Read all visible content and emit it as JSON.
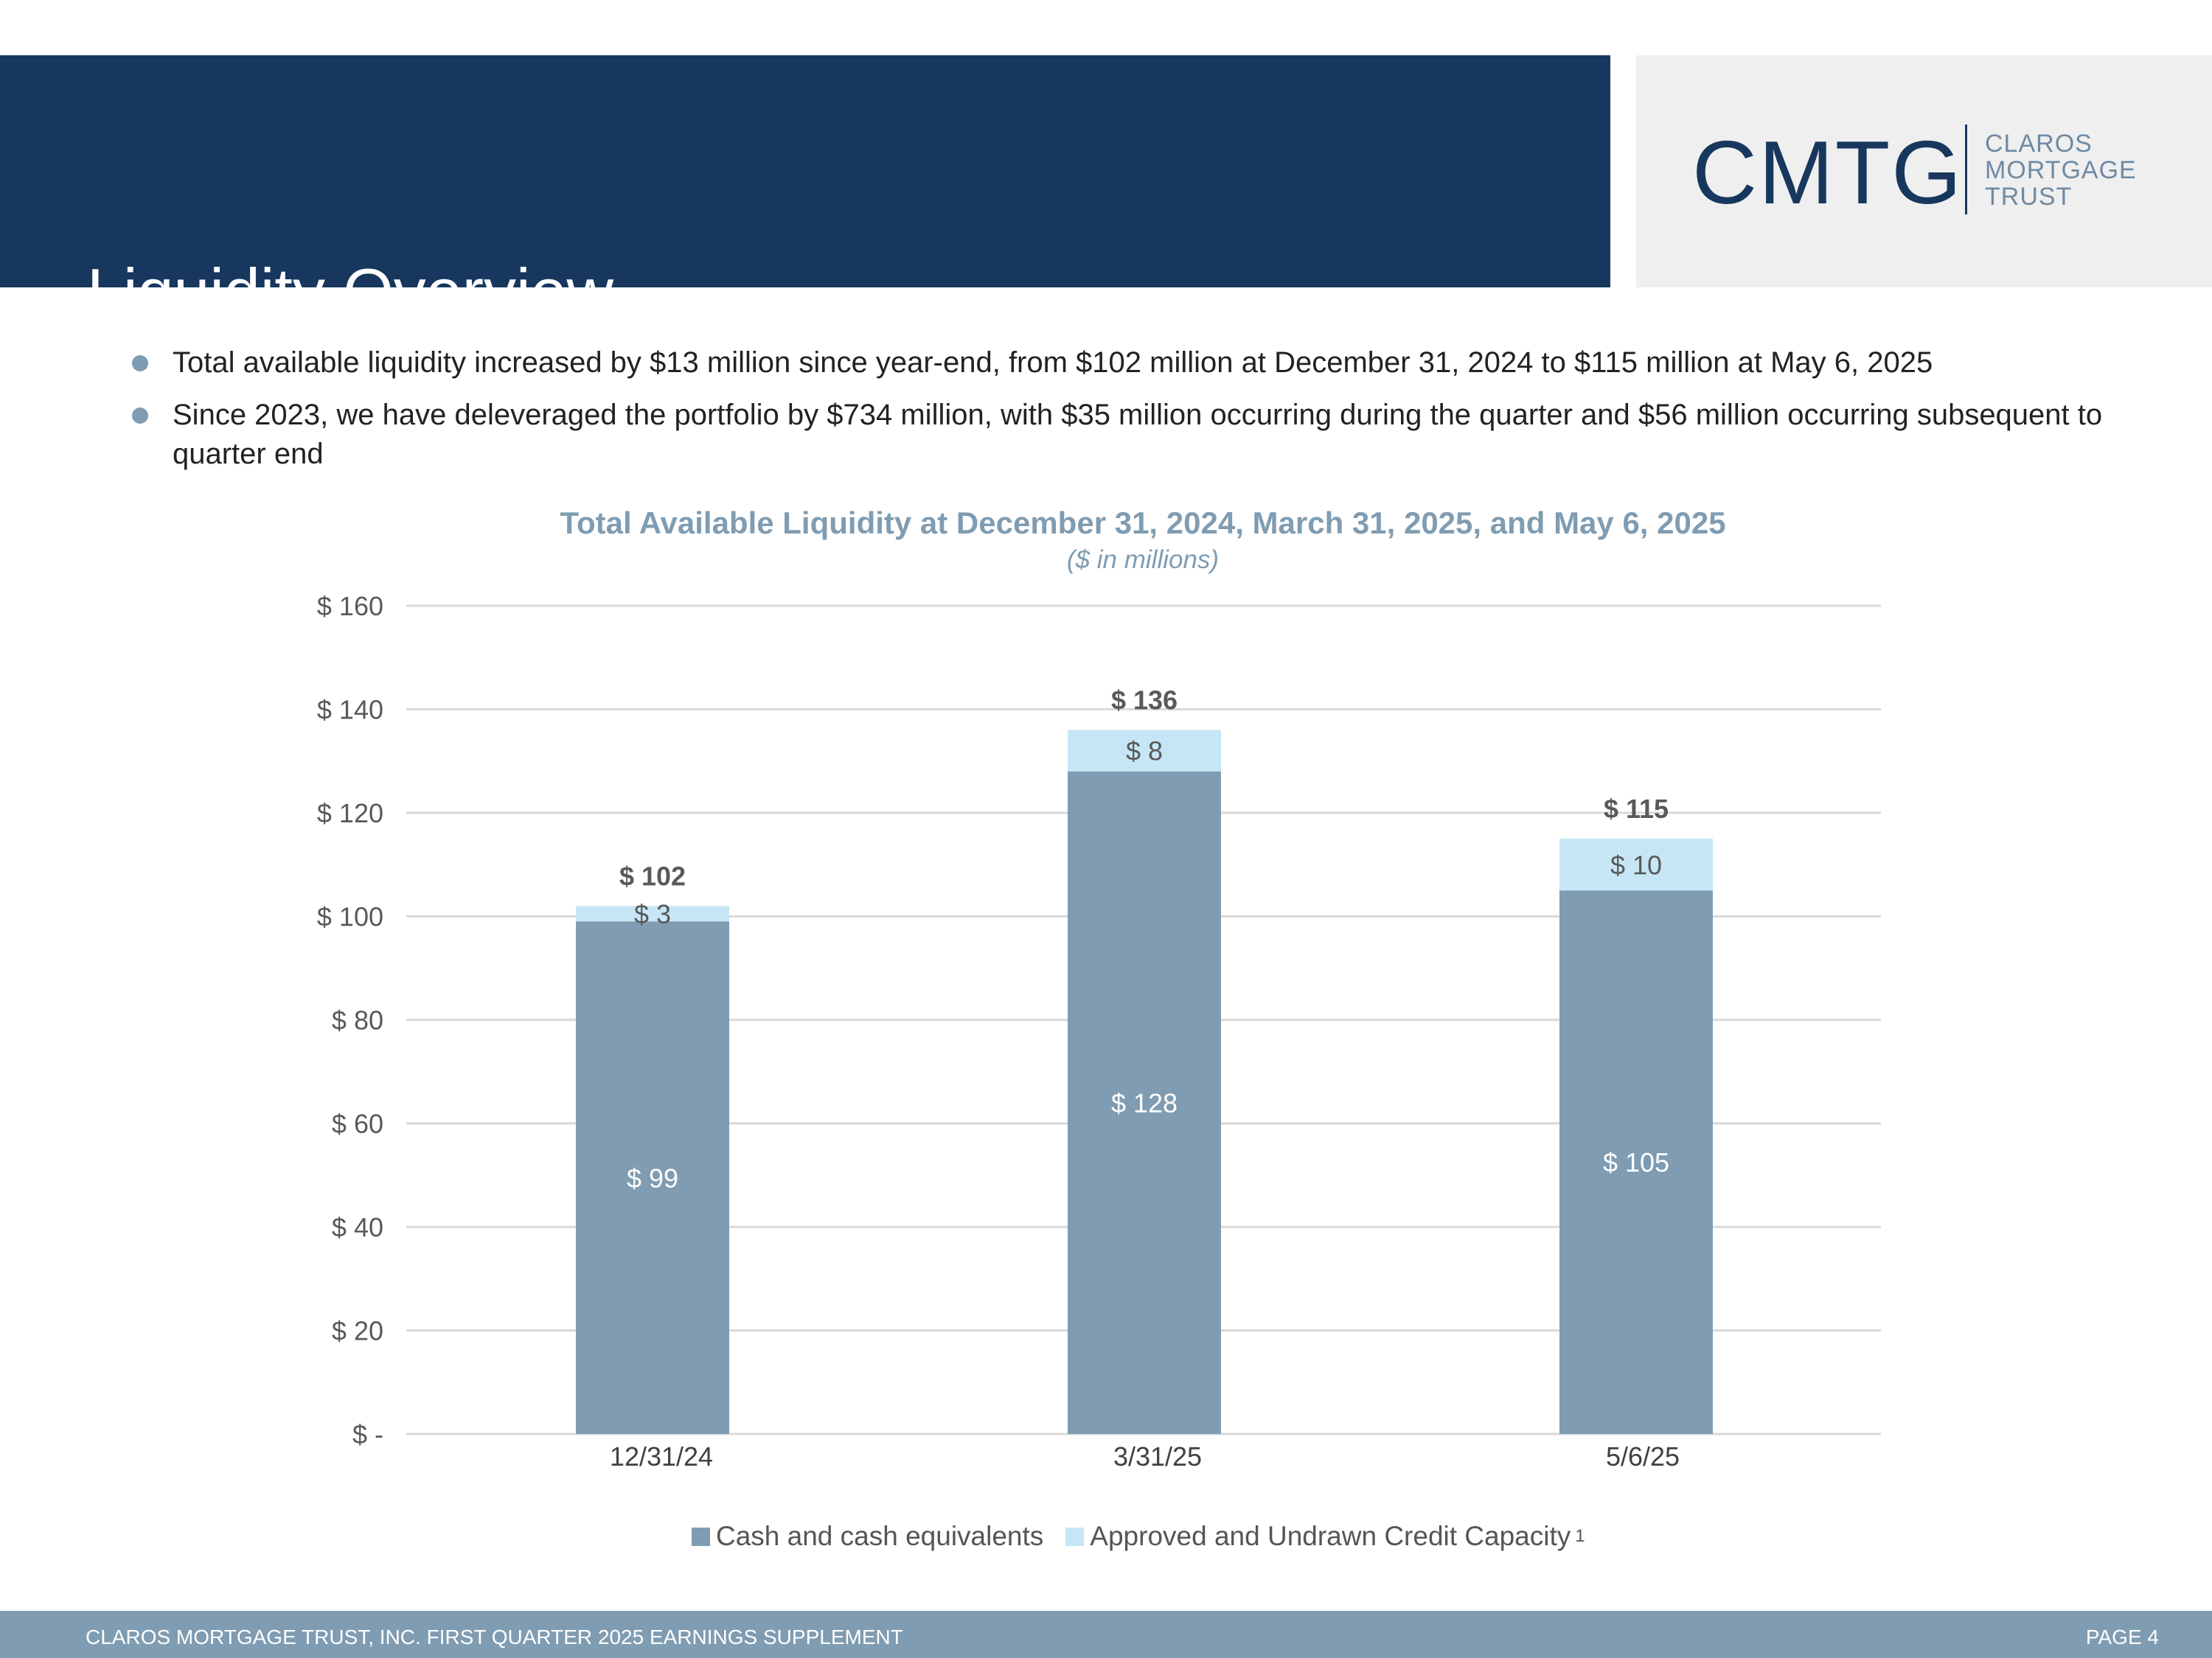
{
  "slide": {
    "title": "Liquidity Overview",
    "header_color": "#17375e"
  },
  "logo": {
    "mark": "CMTG",
    "words": [
      "CLAROS",
      "MORTGAGE",
      "TRUST"
    ]
  },
  "bullets": [
    "Total available liquidity increased by $13 million since year-end, from $102 million at December 31, 2024 to $115 million at May 6, 2025",
    "Since 2023, we have deleveraged the portfolio by $734 million, with $35 million occurring during the quarter and $56 million occurring subsequent to quarter end"
  ],
  "footer": {
    "left": "CLAROS MORTGAGE TRUST, INC. FIRST QUARTER 2025 EARNINGS SUPPLEMENT",
    "right": "PAGE 4"
  },
  "chart_data": {
    "type": "bar",
    "stacked": true,
    "title": "Total Available Liquidity at December 31, 2024, March 31, 2025, and May 6, 2025",
    "subtitle": "($ in millions)",
    "categories": [
      "12/31/24",
      "3/31/25",
      "5/6/25"
    ],
    "series": [
      {
        "name": "Cash and cash equivalents",
        "values": [
          99,
          128,
          105
        ],
        "labels": [
          "$ 99",
          "$ 128",
          "$ 105"
        ],
        "color": "#7f9cb2"
      },
      {
        "name": "Approved and Undrawn Credit Capacity",
        "values": [
          3,
          8,
          10
        ],
        "labels": [
          "$ 3",
          "$ 8",
          "$ 10"
        ],
        "color": "#c6e6f5"
      }
    ],
    "totals": [
      102,
      136,
      115
    ],
    "total_labels": [
      "$ 102",
      "$ 136",
      "$ 115"
    ],
    "legend_footnote": "1",
    "ylim": [
      0,
      160
    ],
    "y_ticks": [
      0,
      20,
      40,
      60,
      80,
      100,
      120,
      140,
      160
    ],
    "y_tick_labels": [
      "$ -",
      "$ 20",
      "$ 40",
      "$ 60",
      "$ 80",
      "$ 100",
      "$ 120",
      "$ 140",
      "$ 160"
    ],
    "grid": true,
    "legend_position": "bottom"
  }
}
